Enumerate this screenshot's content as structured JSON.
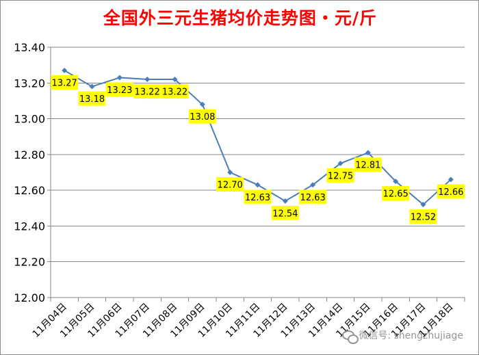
{
  "title": "全国外三元生猪均价走势图・元/斤",
  "watermark": "微信号: shengzhujiage",
  "colors": {
    "title": "#ff0000",
    "line": "#4a7ebb",
    "label_bg": "#ffff00",
    "grid": "#868686"
  },
  "chart_data": {
    "type": "line",
    "title": "全国外三元生猪均价走势图・元/斤",
    "xlabel": "",
    "ylabel": "",
    "ylim": [
      12.0,
      13.4
    ],
    "ytick_step": 0.2,
    "y_ticks": [
      "12.00",
      "12.20",
      "12.40",
      "12.60",
      "12.80",
      "13.00",
      "13.20",
      "13.40"
    ],
    "grid": true,
    "legend": "none",
    "categories": [
      "11月04日",
      "11月05日",
      "11月06日",
      "11月07日",
      "11月08日",
      "11月09日",
      "11月10日",
      "11月11日",
      "11月12日",
      "11月13日",
      "11月14日",
      "11月15日",
      "11月16日",
      "11月17日",
      "11月18日"
    ],
    "series": [
      {
        "values": [
          13.27,
          13.18,
          13.23,
          13.22,
          13.22,
          13.08,
          12.7,
          12.63,
          12.54,
          12.63,
          12.75,
          12.81,
          12.65,
          12.52,
          12.66
        ],
        "labels": [
          "13.27",
          "13.18",
          "13.23",
          "13.22",
          "13.22",
          "13.08",
          "12.70",
          "12.63",
          "12.54",
          "12.63",
          "12.75",
          "12.81",
          "12.65",
          "12.52",
          "12.66"
        ]
      }
    ]
  }
}
